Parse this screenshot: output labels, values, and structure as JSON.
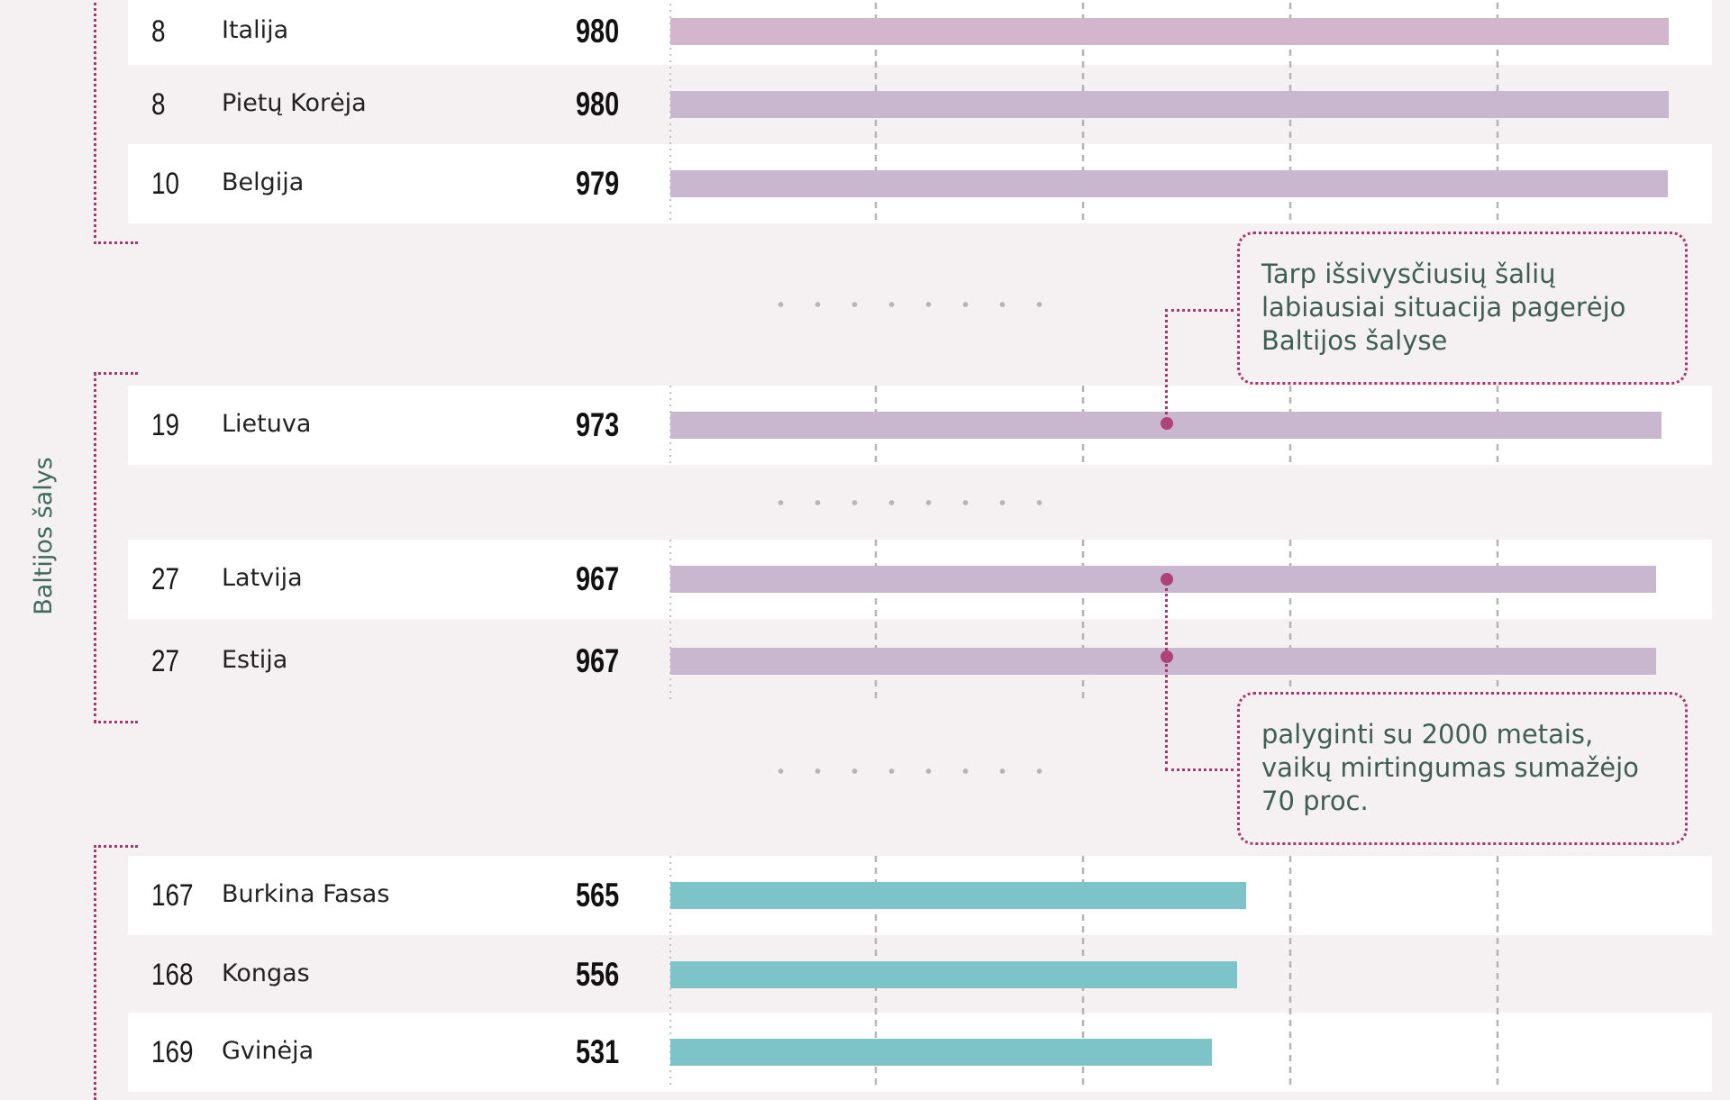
{
  "colors": {
    "background": "#f5f0f2",
    "row_light": "#ffffff",
    "row_dark": "#f5f0f2",
    "bar_developed": "#c9b6cf",
    "bar_developed_top": "#d3b5cd",
    "bar_developing": "#7cc4c8",
    "bracket": "#a8386e",
    "label_text": "#3f6b5e"
  },
  "group_label": "Baltijos šalys",
  "chart_data": {
    "type": "bar",
    "orientation": "horizontal",
    "axis": {
      "xlim": [
        0,
        1000
      ],
      "gridlines": [
        0,
        200,
        400,
        600,
        800,
        1000
      ]
    },
    "rows": [
      {
        "rank": "8",
        "country": "Italija",
        "value": 980,
        "group": "developed"
      },
      {
        "rank": "8",
        "country": "Pietų Korėja",
        "value": 980,
        "group": "developed"
      },
      {
        "rank": "10",
        "country": "Belgija",
        "value": 979,
        "group": "developed"
      },
      {
        "rank": "19",
        "country": "Lietuva",
        "value": 973,
        "group": "baltic"
      },
      {
        "rank": "27",
        "country": "Latvija",
        "value": 967,
        "group": "baltic"
      },
      {
        "rank": "27",
        "country": "Estija",
        "value": 967,
        "group": "baltic"
      },
      {
        "rank": "167",
        "country": "Burkina Fasas",
        "value": 565,
        "group": "developing"
      },
      {
        "rank": "168",
        "country": "Kongas",
        "value": 556,
        "group": "developing"
      },
      {
        "rank": "169",
        "country": "Gvinėja",
        "value": 531,
        "group": "developing"
      }
    ],
    "annotations": [
      {
        "lines": [
          "Tarp išsivysčiusių šalių",
          "labiausiai situacija pagerėjo",
          "Baltijos šalyse"
        ]
      },
      {
        "lines": [
          "palyginti su 2000 metais,",
          "vaikų mirtingumas sumažėjo",
          "70 proc."
        ]
      }
    ]
  }
}
